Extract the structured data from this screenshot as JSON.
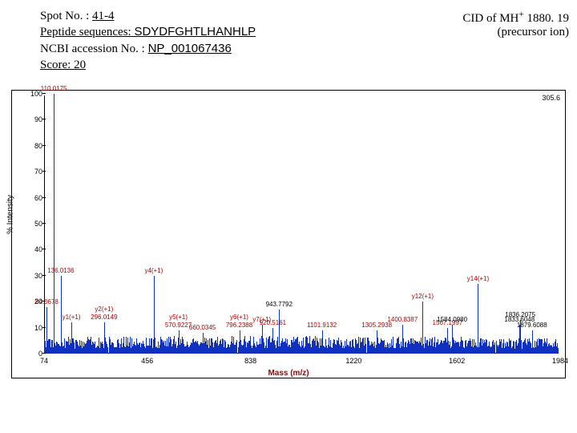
{
  "header": {
    "spot_label": "Spot No. : ",
    "spot_value": "41-4",
    "seq_label": "Peptide sequences: ",
    "seq_value": "SDYDFGHTLHANHLP",
    "ncbi_label": "NCBI accession No. : ",
    "ncbi_value": "NP_001067436",
    "score_label": "Score: ",
    "score_value": "20"
  },
  "header_right": {
    "line1_pre": "CID of MH",
    "line1_sup": "+",
    "line1_post": " 1880. 19",
    "line2": "(precursor ion)"
  },
  "chart": {
    "type": "mass-spectrum",
    "background_color": "#ffffff",
    "axis_color": "#000000",
    "series_color": "#1030c0",
    "label_color": "#b00000",
    "xaxis": {
      "label": "Mass (m/z)",
      "min": 74,
      "max": 1984,
      "ticks": [
        74,
        456,
        838,
        1220,
        1602,
        1984
      ],
      "label_fontsize": 10,
      "tick_fontsize": 9
    },
    "yaxis": {
      "label": "% Intensity",
      "min": 0,
      "max": 100,
      "ticks": [
        0,
        10,
        20,
        30,
        40,
        50,
        60,
        70,
        80,
        90,
        100
      ],
      "label_fontsize": 10,
      "tick_fontsize": 9
    },
    "top_right_value": "305.6",
    "noise_band_height_pct": 7,
    "top_left_big_peak_label": "110.0175",
    "peaks": [
      {
        "mz": 110.0,
        "intensity": 100,
        "label": "110.0175"
      },
      {
        "mz": 84.1,
        "intensity": 18,
        "label": "84.0678",
        "label_color": "#b00000"
      },
      {
        "mz": 136.0,
        "intensity": 30,
        "label": "136.0136"
      },
      {
        "mz": 175.0,
        "intensity": 12,
        "label": "y1(+1)"
      },
      {
        "mz": 296.0,
        "intensity": 12,
        "label": "296.0149",
        "label2": "y2(+1)"
      },
      {
        "mz": 480.0,
        "intensity": 30,
        "label": "y4(+1)"
      },
      {
        "mz": 570.9,
        "intensity": 9,
        "label": "570.9227",
        "label2": "y5(+1)"
      },
      {
        "mz": 660.0,
        "intensity": 8,
        "label": "660.0345"
      },
      {
        "mz": 796.2,
        "intensity": 9,
        "label": "796.2388",
        "label2": "y6(+1)"
      },
      {
        "mz": 880.0,
        "intensity": 11,
        "label": "y7(+1)"
      },
      {
        "mz": 920.5,
        "intensity": 10,
        "label": "920.5161"
      },
      {
        "mz": 943.8,
        "intensity": 17,
        "label": "943.7792",
        "label_color": "#000000"
      },
      {
        "mz": 1101.9,
        "intensity": 9,
        "label": "1101.9132"
      },
      {
        "mz": 1305.3,
        "intensity": 9,
        "label": "1305.2938"
      },
      {
        "mz": 1400.8,
        "intensity": 11,
        "label": "1400.8387"
      },
      {
        "mz": 1475.0,
        "intensity": 20,
        "label": "y12(+1)"
      },
      {
        "mz": 1567.2,
        "intensity": 10,
        "label": "1567.1997"
      },
      {
        "mz": 1584.1,
        "intensity": 11,
        "label": "1584.0980",
        "label_color": "#000000"
      },
      {
        "mz": 1680.0,
        "intensity": 27,
        "label": "y14(+1)"
      },
      {
        "mz": 1833.6,
        "intensity": 11,
        "label": "1833.6048",
        "label_color": "#000000"
      },
      {
        "mz": 1836.2,
        "intensity": 13,
        "label": "1836.2075",
        "label_color": "#000000"
      },
      {
        "mz": 1879.6,
        "intensity": 9,
        "label": "1879.6088",
        "label_color": "#000000"
      }
    ]
  }
}
